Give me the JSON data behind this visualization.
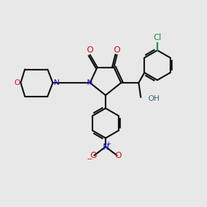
{
  "bg_color": "#e8e8e8",
  "bond_color": "#111111",
  "N_color": "#1010cc",
  "O_color": "#cc1111",
  "Cl_color": "#228844",
  "OH_color": "#336677",
  "lw": 1.6,
  "figsize": [
    3.0,
    3.0
  ],
  "dpi": 100,
  "xlim": [
    0,
    10
  ],
  "ylim": [
    0,
    10
  ]
}
